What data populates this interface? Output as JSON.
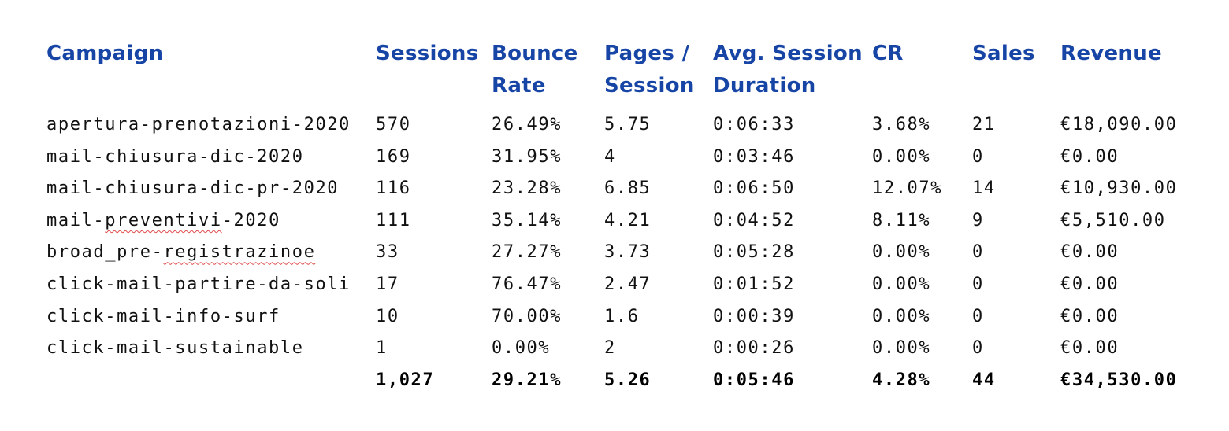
{
  "table": {
    "headers": {
      "campaign": "Campaign",
      "sessions": "Sessions",
      "bounce_rate": "Bounce Rate",
      "pages_per_session": "Pages / Session",
      "avg_session_duration": "Avg. Session Duration",
      "cr": "CR",
      "sales": "Sales",
      "revenue": "Revenue"
    },
    "rows": [
      {
        "campaign_pre": "apertura-prenotazioni-2020",
        "campaign_flag": "",
        "campaign_post": "",
        "sessions": "570",
        "bounce_rate": "26.49%",
        "pages_per_session": "5.75",
        "avg_session_duration": "0:06:33",
        "cr": "3.68%",
        "sales": "21",
        "revenue": "€18,090.00"
      },
      {
        "campaign_pre": "mail-chiusura-dic-2020",
        "campaign_flag": "",
        "campaign_post": "",
        "sessions": "169",
        "bounce_rate": "31.95%",
        "pages_per_session": "4",
        "avg_session_duration": "0:03:46",
        "cr": "0.00%",
        "sales": "0",
        "revenue": "€0.00"
      },
      {
        "campaign_pre": "mail-chiusura-dic-pr-2020",
        "campaign_flag": "",
        "campaign_post": "",
        "sessions": "116",
        "bounce_rate": "23.28%",
        "pages_per_session": "6.85",
        "avg_session_duration": "0:06:50",
        "cr": "12.07%",
        "sales": "14",
        "revenue": "€10,930.00"
      },
      {
        "campaign_pre": "mail-",
        "campaign_flag": "preventivi",
        "campaign_post": "-2020",
        "sessions": "111",
        "bounce_rate": "35.14%",
        "pages_per_session": "4.21",
        "avg_session_duration": "0:04:52",
        "cr": "8.11%",
        "sales": "9",
        "revenue": "€5,510.00"
      },
      {
        "campaign_pre": "broad_pre-",
        "campaign_flag": "registrazinoe",
        "campaign_post": "",
        "sessions": "33",
        "bounce_rate": "27.27%",
        "pages_per_session": "3.73",
        "avg_session_duration": "0:05:28",
        "cr": "0.00%",
        "sales": "0",
        "revenue": "€0.00"
      },
      {
        "campaign_pre": "click-mail-partire-da-soli",
        "campaign_flag": "",
        "campaign_post": "",
        "sessions": "17",
        "bounce_rate": "76.47%",
        "pages_per_session": "2.47",
        "avg_session_duration": "0:01:52",
        "cr": "0.00%",
        "sales": "0",
        "revenue": "€0.00"
      },
      {
        "campaign_pre": "click-mail-info-surf",
        "campaign_flag": "",
        "campaign_post": "",
        "sessions": "10",
        "bounce_rate": "70.00%",
        "pages_per_session": "1.6",
        "avg_session_duration": "0:00:39",
        "cr": "0.00%",
        "sales": "0",
        "revenue": "€0.00"
      },
      {
        "campaign_pre": "click-mail-sustainable",
        "campaign_flag": "",
        "campaign_post": "",
        "sessions": "1",
        "bounce_rate": "0.00%",
        "pages_per_session": "2",
        "avg_session_duration": "0:00:26",
        "cr": "0.00%",
        "sales": "0",
        "revenue": "€0.00"
      }
    ],
    "totals": {
      "campaign": "",
      "sessions": "1,027",
      "bounce_rate": "29.21%",
      "pages_per_session": "5.26",
      "avg_session_duration": "0:05:46",
      "cr": "4.28%",
      "sales": "44",
      "revenue": "€34,530.00"
    }
  },
  "colors": {
    "header_text": "#1745a6",
    "body_text": "#111111",
    "spellcheck_underline": "#e04848"
  }
}
